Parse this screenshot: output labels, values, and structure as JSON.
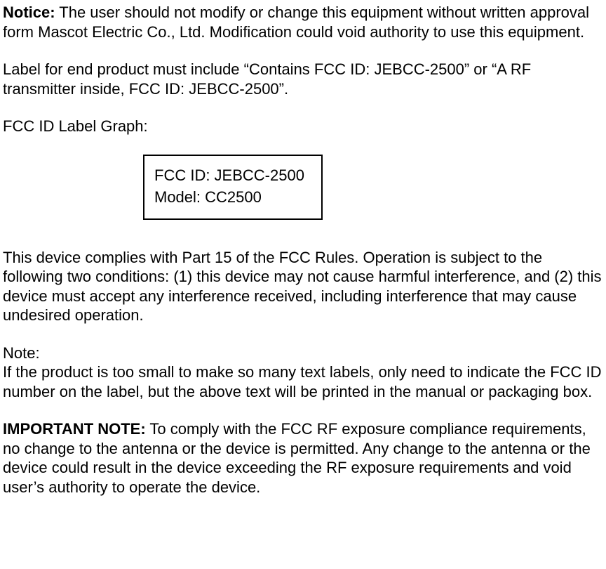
{
  "notice": {
    "heading": "Notice:",
    "body": " The user should not modify or change this equipment without written approval form Mascot Electric Co., Ltd. Modification could void authority to use this equipment."
  },
  "label_instruction": "Label for end product must include “Contains FCC ID: JEBCC-2500” or “A RF transmitter inside, FCC ID: JEBCC-2500”.",
  "label_graph_title": "FCC ID Label Graph:",
  "label_box": {
    "line1": "FCC ID: JEBCC-2500",
    "line2": "Model: CC2500"
  },
  "compliance": "This device complies with Part 15 of the FCC Rules. Operation is subject to the following two conditions: (1) this device may not cause harmful interference, and (2) this device must accept any interference received, including interference that may cause undesired operation.",
  "note": {
    "heading": "Note:",
    "body": "If the product is too small to make so many text labels, only need to indicate the FCC ID number on the label, but the above text will be printed in the manual or packaging box."
  },
  "important": {
    "heading": "IMPORTANT NOTE:",
    "body": " To comply with the FCC RF exposure compliance requirements, no change to the antenna or the device is permitted. Any change to the antenna or the device could result in the device exceeding the RF exposure requirements and void user’s authority to operate the device."
  }
}
